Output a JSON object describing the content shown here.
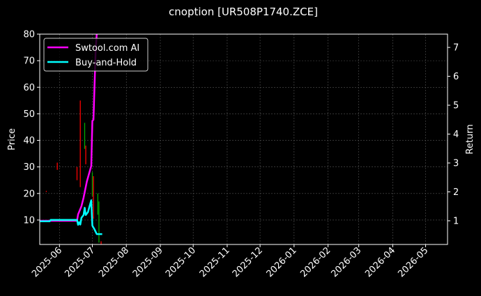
{
  "chart_data": {
    "type": "line",
    "title": "cnoption [UR508P1740.ZCE]",
    "ylabel": "Price",
    "ylabel_right": "Return",
    "xlim": [
      "2025-05-14",
      "2026-05-21"
    ],
    "ylim": [
      0.8,
      80
    ],
    "ylim_right": [
      0.18,
      7.46
    ],
    "yticks": [
      10,
      20,
      30,
      40,
      50,
      60,
      70,
      80
    ],
    "yticks_right": [
      1,
      2,
      3,
      4,
      5,
      6,
      7
    ],
    "xticks": [
      "2025-06",
      "2025-07",
      "2025-08",
      "2025-09",
      "2025-10",
      "2025-11",
      "2025-12",
      "2026-01",
      "2026-02",
      "2026-03",
      "2026-04",
      "2026-05"
    ],
    "grid": true,
    "legend_position": "top-left",
    "background": "#000000",
    "candles": [
      {
        "date": "2025-05-20",
        "high": 21,
        "low": 20.6,
        "color": "#ff0000"
      },
      {
        "date": "2025-05-30",
        "high": 31.6,
        "low": 28.9,
        "color": "#ff0000"
      },
      {
        "date": "2025-06-17",
        "high": 30,
        "low": 25,
        "color": "#ff0000"
      },
      {
        "date": "2025-06-20",
        "high": 55,
        "low": 22.4,
        "color": "#ff0000"
      },
      {
        "date": "2025-06-24",
        "high": 46.6,
        "low": 36.8,
        "color": "#00aa00"
      },
      {
        "date": "2025-06-25",
        "high": 38,
        "low": 31,
        "color": "#ff0000"
      },
      {
        "date": "2025-07-01",
        "high": 28,
        "low": 19,
        "color": "#00aa00"
      },
      {
        "date": "2025-07-02",
        "high": 26.5,
        "low": 10.5,
        "color": "#ff0000"
      },
      {
        "date": "2025-07-06",
        "high": 20,
        "low": 12,
        "color": "#00aa00"
      },
      {
        "date": "2025-07-07",
        "high": 17,
        "low": 1.5,
        "color": "#00aa00"
      },
      {
        "date": "2025-07-09",
        "high": 2,
        "low": 0.9,
        "color": "#ff0000"
      }
    ],
    "series": [
      {
        "name": "Swtool.com AI",
        "color": "#ff00ff",
        "axis": "right",
        "x": [
          "2025-05-14",
          "2025-06-17",
          "2025-06-18",
          "2025-06-21",
          "2025-06-23",
          "2025-06-26",
          "2025-06-30",
          "2025-07-01",
          "2025-07-02",
          "2025-07-04",
          "2025-07-06"
        ],
        "y": [
          1.0,
          1.0,
          1.22,
          1.5,
          1.8,
          2.36,
          2.9,
          4.46,
          4.5,
          6.9,
          8.0
        ]
      },
      {
        "name": "Buy-and-Hold",
        "color": "#00ffff",
        "axis": "right",
        "x": [
          "2025-05-14",
          "2025-05-23",
          "2025-05-24",
          "2025-06-17",
          "2025-06-18",
          "2025-06-19",
          "2025-06-20",
          "2025-06-21",
          "2025-06-23",
          "2025-06-24",
          "2025-06-25",
          "2025-06-27",
          "2025-06-30",
          "2025-07-01",
          "2025-07-03",
          "2025-07-05",
          "2025-07-10"
        ],
        "y": [
          0.98,
          0.98,
          1.03,
          1.03,
          0.86,
          0.95,
          0.87,
          1.1,
          1.2,
          1.45,
          1.2,
          1.3,
          1.71,
          0.83,
          0.7,
          0.54,
          0.54
        ]
      }
    ]
  }
}
